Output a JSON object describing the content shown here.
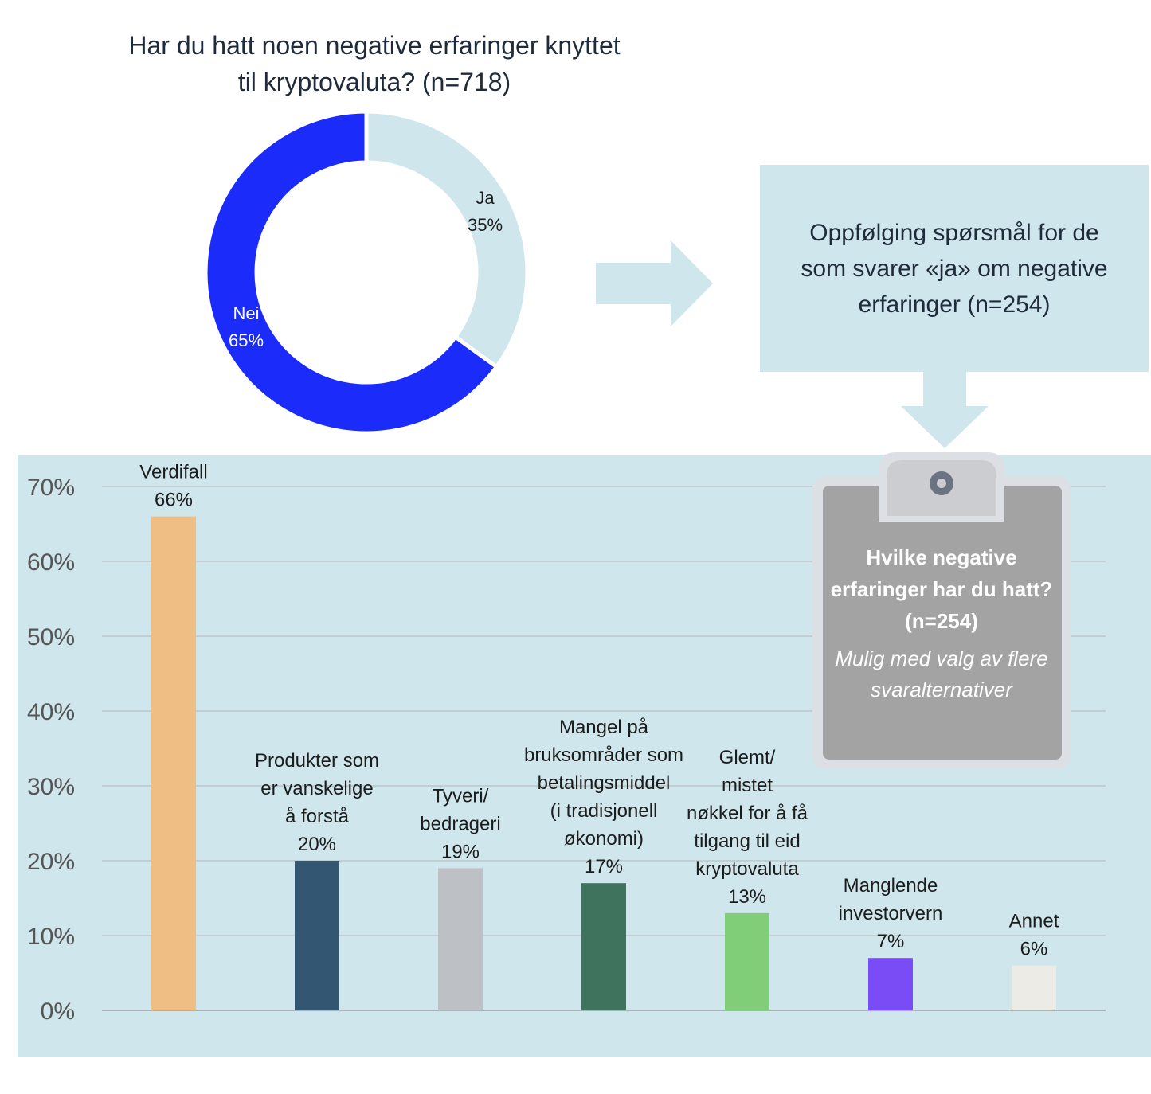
{
  "donut": {
    "title": "Har du hatt noen negative erfaringer knyttet til kryptovaluta? (n=718)",
    "chart_data": {
      "type": "pie",
      "categories": [
        "Ja",
        "Nei"
      ],
      "values": [
        35,
        65
      ],
      "unit": "%",
      "colors": [
        "#cfe6ec",
        "#1a2bfa"
      ],
      "data_labels": [
        "35%",
        "65%"
      ]
    }
  },
  "followup": {
    "text": "Oppfølging spørsmål for de som svarer «ja» om negative erfaringer (n=254)"
  },
  "clipboard": {
    "question": "Hvilke negative erfaringer har du hatt? (n=254)",
    "note": "Mulig med valg av flere svaralternativer"
  },
  "chart_data": {
    "type": "bar",
    "categories": [
      "Verdifall",
      "Produkter som er vanskelige å forstå",
      "Tyveri/ bedrageri",
      "Mangel på bruksområder som betalingsmiddel (i tradisjonell økonomi)",
      "Glemt/ mistet nøkkel for å få tilgang til eid kryptovaluta",
      "Manglende investorvern",
      "Annet"
    ],
    "category_label_lines": [
      [
        "Verdifall"
      ],
      [
        "Produkter som",
        "er vanskelige",
        "å forstå"
      ],
      [
        "Tyveri/",
        "bedrageri"
      ],
      [
        "Mangel på",
        "bruksområder som",
        "betalingsmiddel",
        "(i tradisjonell",
        "økonomi)"
      ],
      [
        "Glemt/",
        "mistet",
        "nøkkel for å få",
        "tilgang til eid",
        "kryptovaluta"
      ],
      [
        "Manglende",
        "investorvern"
      ],
      [
        "Annet"
      ]
    ],
    "values": [
      66,
      20,
      19,
      17,
      13,
      7,
      6
    ],
    "data_labels": [
      "66%",
      "20%",
      "19%",
      "17%",
      "13%",
      "7%",
      "6%"
    ],
    "colors": [
      "#efbe84",
      "#335772",
      "#bdc1c6",
      "#40735d",
      "#80cf78",
      "#7a4cf6",
      "#ecebe5"
    ],
    "ylim": [
      0,
      70
    ],
    "yticks": [
      "0%",
      "10%",
      "20%",
      "30%",
      "40%",
      "50%",
      "60%",
      "70%"
    ],
    "grid": true
  }
}
